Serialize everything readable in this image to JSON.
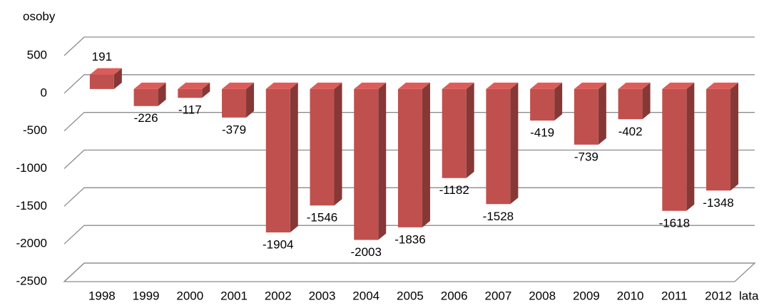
{
  "chart_data": {
    "type": "bar",
    "y_label": "osoby",
    "x_label": "lata",
    "categories": [
      "1998",
      "1999",
      "2000",
      "2001",
      "2002",
      "2003",
      "2004",
      "2005",
      "2006",
      "2007",
      "2008",
      "2009",
      "2010",
      "2011",
      "2012"
    ],
    "values": [
      191,
      -226,
      -117,
      -379,
      -1904,
      -1546,
      -2003,
      -1836,
      -1182,
      -1528,
      -419,
      -739,
      -402,
      -1618,
      -1348
    ],
    "color": "#c0504d",
    "ylim": [
      -2500,
      500
    ],
    "yticks": [
      -2500,
      -2000,
      -1500,
      -1000,
      -500,
      0,
      500
    ],
    "grid": true
  }
}
